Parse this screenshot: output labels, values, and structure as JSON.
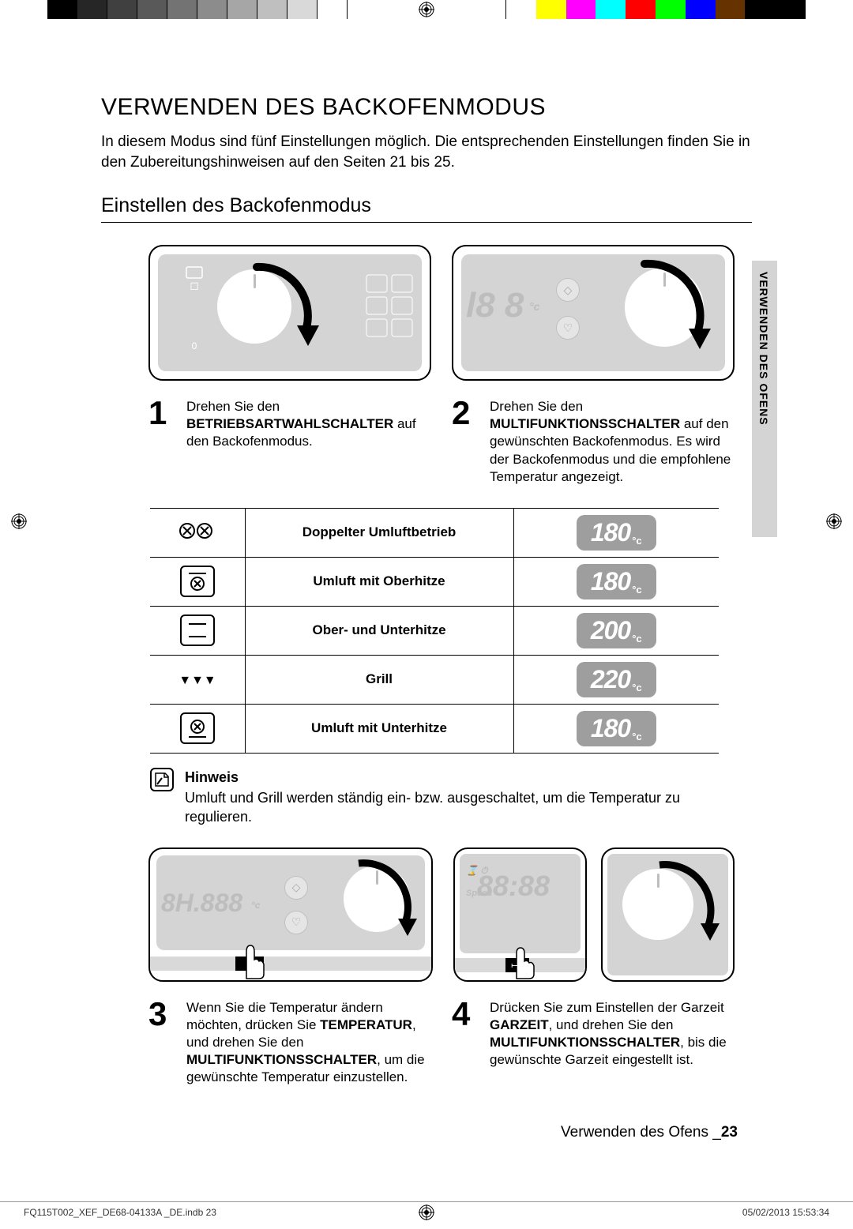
{
  "colorbar_left": [
    "#000000",
    "#262626",
    "#404040",
    "#595959",
    "#737373",
    "#8c8c8c",
    "#a6a6a6",
    "#bfbfbf",
    "#d9d9d9",
    "#ffffff"
  ],
  "colorbar_right": [
    "#ffffff",
    "#ffff00",
    "#ff00ff",
    "#00ffff",
    "#ff0000",
    "#00ff00",
    "#0000ff",
    "#663300",
    "#000000",
    "#000000"
  ],
  "main_title": "VERWENDEN DES BACKOFENMODUS",
  "intro": "In diesem Modus sind fünf Einstellungen möglich. Die entsprechenden Einstellungen finden Sie in den Zubereitungshinweisen auf den Seiten 21 bis 25.",
  "sub_title": "Einstellen des Backofenmodus",
  "side_tab": "VERWENDEN DES OFENS",
  "step1": {
    "num": "1",
    "pre": "Drehen Sie den ",
    "bold": "BETRIEBSARTWAHLSCHALTER",
    "post": " auf den Backofenmodus."
  },
  "step2": {
    "num": "2",
    "pre": "Drehen Sie den ",
    "bold": "MULTIFUNKTIONSSCHALTER",
    "post": " auf den gewünschten Backofenmodus. Es wird der Backofenmodus und die empfohlene Temperatur angezeigt."
  },
  "modes": [
    {
      "icon": "dual-fan",
      "label": "Doppelter Umluftbetrieb",
      "temp": "180"
    },
    {
      "icon": "fan-top",
      "label": "Umluft mit Oberhitze",
      "temp": "180"
    },
    {
      "icon": "top-bottom",
      "label": "Ober- und Unterhitze",
      "temp": "200"
    },
    {
      "icon": "grill",
      "label": "Grill",
      "temp": "220"
    },
    {
      "icon": "fan-bottom",
      "label": "Umluft mit Unterhitze",
      "temp": "180"
    }
  ],
  "temp_unit": "°c",
  "hinweis_label": "Hinweis",
  "hinweis_text": "Umluft und Grill werden ständig ein- bzw. ausgeschaltet, um die Temperatur zu regulieren.",
  "step3": {
    "num": "3",
    "t1": "Wenn Sie die Temperatur ändern möchten, drücken Sie ",
    "b1": "TEMPERATUR",
    "t2": ", und drehen Sie den ",
    "b2": "MULTIFUNKTIONSSCHALTER",
    "t3": ", um die gewünschte Temperatur einzustellen."
  },
  "step4": {
    "num": "4",
    "t1": "Drücken Sie zum Einstellen der Garzeit ",
    "b1": "GARZEIT",
    "t2": ", und drehen Sie den ",
    "b2": "MULTIFUNKTIONSSCHALTER",
    "t3": ", bis die gewünschte Garzeit eingestellt ist."
  },
  "page_footer_text": "Verwenden des Ofens _",
  "page_footer_num": "23",
  "print_file": "FQ115T002_XEF_DE68-04133A _DE.indb   23",
  "print_date": "05/02/2013   15:53:34"
}
